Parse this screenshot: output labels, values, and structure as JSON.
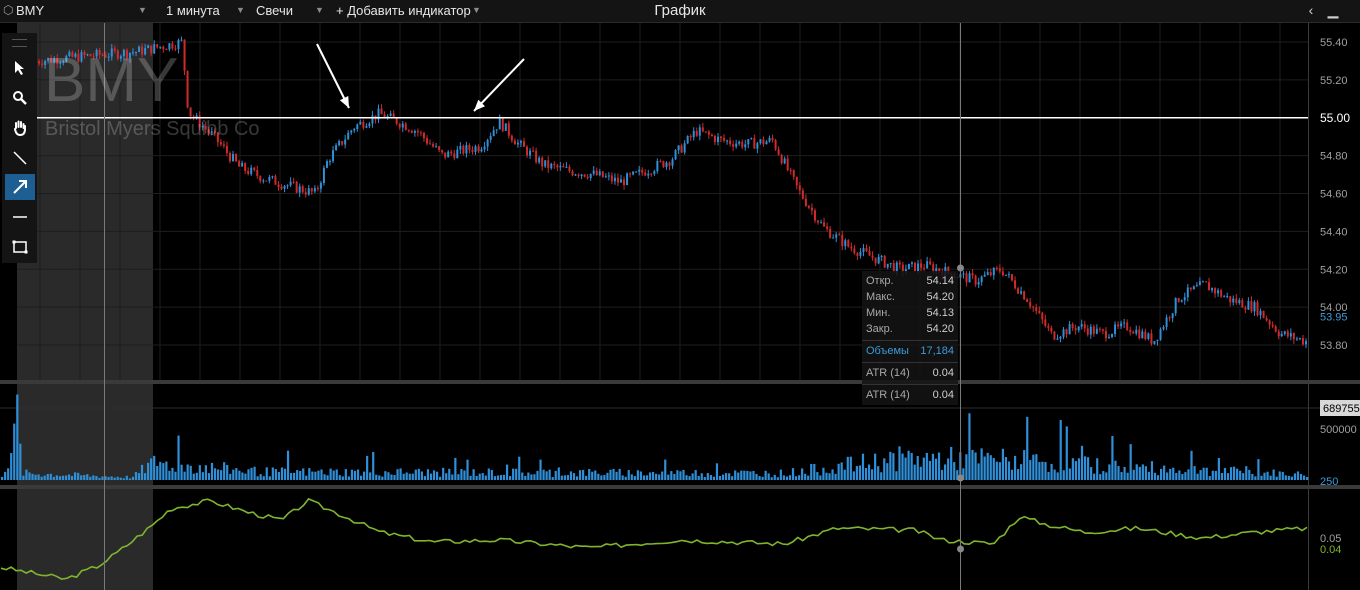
{
  "toolbar": {
    "symbol": "BMY",
    "interval": "1 минута",
    "chart_type": "Свечи",
    "add_indicator": "+ Добавить индикатор",
    "title": "График",
    "back_icon": "chevron-left-icon",
    "minimize_icon": "minimize-icon"
  },
  "watermark": {
    "ticker": "BMY",
    "company": "Bristol Myers Squibb Co"
  },
  "drawing_tools": [
    {
      "name": "cursor-icon",
      "active": false
    },
    {
      "name": "zoom-icon",
      "active": false
    },
    {
      "name": "hand-icon",
      "active": false
    },
    {
      "name": "line-icon",
      "active": false
    },
    {
      "name": "arrow-icon",
      "active": true
    },
    {
      "name": "horizontal-line-icon",
      "active": false
    },
    {
      "name": "rectangle-icon",
      "active": false
    }
  ],
  "tooltip": {
    "open_label": "Откр.",
    "open_value": "54.14",
    "high_label": "Макс.",
    "high_value": "54.20",
    "low_label": "Мин.",
    "low_value": "54.13",
    "close_label": "Закр.",
    "close_value": "54.20",
    "volume_label": "Объемы",
    "volume_value": "17,184",
    "atr_label": "ATR (14)",
    "atr_value": "0.04",
    "atr2_label": "ATR (14)",
    "atr2_value": "0.04"
  },
  "colors": {
    "up": "#2f8fd8",
    "down": "#d02a2a",
    "volume": "#2f8fd8",
    "atr_line": "#7fb52e",
    "grid": "#1e1e1e",
    "last_price": "#3d9ad8",
    "highlight_level": "#ffffff"
  },
  "chart_data": {
    "type": "candlestick",
    "price_axis": {
      "ticks": [
        "55.40",
        "55.20",
        "55.00",
        "54.80",
        "54.60",
        "54.40",
        "54.20",
        "54.00",
        "53.80"
      ],
      "range": [
        53.7,
        55.48
      ],
      "highlight_level": "55.00",
      "last_price": "53.95"
    },
    "volume_axis": {
      "ticks": [
        "500000",
        "250"
      ],
      "cursor_value": "689755"
    },
    "atr_axis": {
      "ticks": [
        "0.05",
        "0.04"
      ]
    },
    "price_path": [
      [
        0,
        55.3
      ],
      [
        0.03,
        55.32
      ],
      [
        0.08,
        55.35
      ],
      [
        0.115,
        55.4
      ],
      [
        0.12,
        55.03
      ],
      [
        0.14,
        54.9
      ],
      [
        0.16,
        54.74
      ],
      [
        0.18,
        54.68
      ],
      [
        0.2,
        54.64
      ],
      [
        0.22,
        54.6
      ],
      [
        0.23,
        54.78
      ],
      [
        0.25,
        54.95
      ],
      [
        0.27,
        55.02
      ],
      [
        0.285,
        54.98
      ],
      [
        0.3,
        54.93
      ],
      [
        0.32,
        54.8
      ],
      [
        0.35,
        54.85
      ],
      [
        0.365,
        54.98
      ],
      [
        0.38,
        54.86
      ],
      [
        0.4,
        54.75
      ],
      [
        0.42,
        54.72
      ],
      [
        0.44,
        54.7
      ],
      [
        0.46,
        54.66
      ],
      [
        0.48,
        54.72
      ],
      [
        0.5,
        54.78
      ],
      [
        0.52,
        54.93
      ],
      [
        0.54,
        54.88
      ],
      [
        0.56,
        54.86
      ],
      [
        0.58,
        54.88
      ],
      [
        0.6,
        54.62
      ],
      [
        0.62,
        54.42
      ],
      [
        0.64,
        54.32
      ],
      [
        0.66,
        54.26
      ],
      [
        0.68,
        54.2
      ],
      [
        0.7,
        54.22
      ],
      [
        0.72,
        54.18
      ],
      [
        0.74,
        54.14
      ],
      [
        0.76,
        54.2
      ],
      [
        0.78,
        54.05
      ],
      [
        0.8,
        53.85
      ],
      [
        0.82,
        53.9
      ],
      [
        0.84,
        53.86
      ],
      [
        0.86,
        53.9
      ],
      [
        0.88,
        53.82
      ],
      [
        0.9,
        54.05
      ],
      [
        0.92,
        54.12
      ],
      [
        0.94,
        54.04
      ],
      [
        0.96,
        54.0
      ],
      [
        0.98,
        53.86
      ],
      [
        1.0,
        53.82
      ]
    ],
    "volume_profile": [
      [
        0,
        0.08
      ],
      [
        0.012,
        0.7
      ],
      [
        0.016,
        0.1
      ],
      [
        0.1,
        0.04
      ],
      [
        0.115,
        0.25
      ],
      [
        0.2,
        0.12
      ],
      [
        0.6,
        0.1
      ],
      [
        0.69,
        0.32
      ],
      [
        0.77,
        0.3
      ],
      [
        0.85,
        0.2
      ],
      [
        1.0,
        0.08
      ]
    ],
    "atr_path": [
      [
        0,
        0.028
      ],
      [
        0.05,
        0.022
      ],
      [
        0.075,
        0.029
      ],
      [
        0.09,
        0.036
      ],
      [
        0.115,
        0.049
      ],
      [
        0.13,
        0.058
      ],
      [
        0.16,
        0.062
      ],
      [
        0.19,
        0.056
      ],
      [
        0.215,
        0.052
      ],
      [
        0.235,
        0.062
      ],
      [
        0.26,
        0.055
      ],
      [
        0.29,
        0.046
      ],
      [
        0.33,
        0.041
      ],
      [
        0.38,
        0.042
      ],
      [
        0.45,
        0.038
      ],
      [
        0.52,
        0.042
      ],
      [
        0.6,
        0.04
      ],
      [
        0.64,
        0.048
      ],
      [
        0.7,
        0.047
      ],
      [
        0.72,
        0.042
      ],
      [
        0.76,
        0.04
      ],
      [
        0.78,
        0.054
      ],
      [
        0.8,
        0.05
      ],
      [
        0.83,
        0.046
      ],
      [
        0.87,
        0.048
      ],
      [
        0.92,
        0.043
      ],
      [
        0.96,
        0.046
      ],
      [
        1.0,
        0.048
      ]
    ]
  }
}
